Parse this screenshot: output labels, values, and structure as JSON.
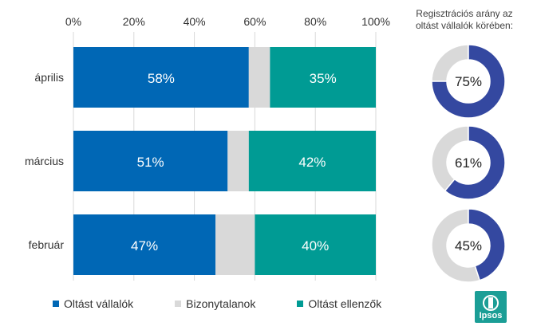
{
  "chart_data": [
    {
      "type": "bar",
      "orientation": "horizontal",
      "stacked": true,
      "categories": [
        "április",
        "március",
        "február"
      ],
      "series": [
        {
          "name": "Oltást vállalók",
          "values": [
            58,
            51,
            47
          ],
          "color": "#0067b5",
          "label_visible": true
        },
        {
          "name": "Bizonytalanok",
          "values": [
            7,
            7,
            13
          ],
          "color": "#d9d9d9",
          "label_visible": false
        },
        {
          "name": "Oltást ellenzők",
          "values": [
            35,
            42,
            40
          ],
          "color": "#009b94",
          "label_visible": true
        }
      ],
      "xlim": [
        0,
        100
      ],
      "xticks": [
        "0%",
        "20%",
        "40%",
        "60%",
        "80%",
        "100%"
      ],
      "xaxis_position": "top",
      "grid": true,
      "legend_position": "bottom"
    },
    {
      "type": "pie",
      "variant": "donut",
      "title": "Regisztrációs arány az oltást vállalók körében:",
      "title_lines": [
        "Regisztrációs arány az",
        "oltást vállalók körében:"
      ],
      "values": [
        75,
        61,
        45
      ],
      "labels": [
        "75%",
        "61%",
        "45%"
      ],
      "color": "#3448a0",
      "remainder_color": "#d9d9d9"
    }
  ],
  "logo_text": "Ipsos",
  "colors": {
    "accent": "#0067b5",
    "teal": "#009b94",
    "grey": "#d9d9d9",
    "donut": "#3448a0"
  }
}
